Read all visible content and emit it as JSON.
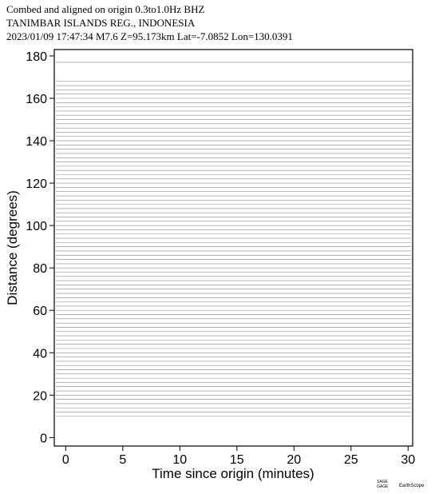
{
  "chart_data": {
    "type": "record-section",
    "title_lines": [
      "Combed and aligned on origin  0.3to1.0Hz  BHZ",
      "TANIMBAR ISLANDS REG., INDONESIA",
      "2023/01/09  17:47:34  M7.6  Z=95.173km Lat=-7.0852 Lon=130.0391"
    ],
    "x_label": "Time since origin (minutes)",
    "y_label": "Distance (degrees)",
    "xlim": [
      -1,
      30.4
    ],
    "xticks": [
      0,
      5,
      10,
      15,
      20,
      25,
      30
    ],
    "ylim": [
      -4,
      183
    ],
    "yticks": [
      0,
      20,
      40,
      60,
      80,
      100,
      120,
      140,
      160,
      180
    ],
    "trace_color": "#888888",
    "trace_distances": [
      10,
      12,
      14,
      16,
      18,
      20,
      22,
      24,
      26,
      28,
      30,
      32,
      34,
      36,
      38,
      40,
      42,
      44,
      46,
      48,
      50,
      52,
      54,
      56,
      58,
      60,
      62,
      64,
      66,
      68,
      70,
      72,
      74,
      76,
      78,
      80,
      82,
      84,
      86,
      88,
      90,
      92,
      94,
      96,
      98,
      100,
      102,
      104,
      106,
      108,
      110,
      112,
      114,
      116,
      118,
      120,
      122,
      124,
      126,
      128,
      130,
      132,
      134,
      136,
      138,
      140,
      142,
      144,
      146,
      148,
      150,
      152,
      154,
      156,
      158,
      160,
      162,
      164,
      166,
      168,
      177
    ],
    "credits": [
      "GAGE",
      "SAGE",
      "EarthScope"
    ]
  }
}
